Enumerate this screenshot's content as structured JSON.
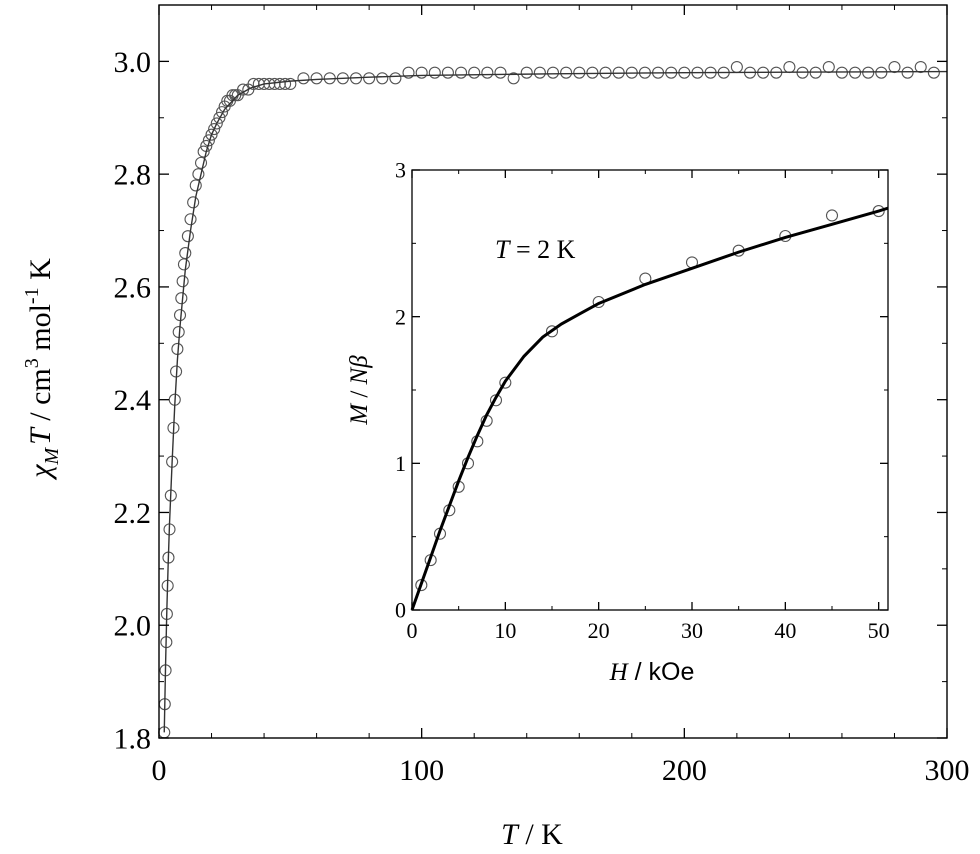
{
  "chart_data": [
    {
      "type": "scatter",
      "panel": "main",
      "xlabel": {
        "main": "T",
        "unit": " / K"
      },
      "ylabel": {
        "chi": "χ",
        "sub": "M",
        "T": "T",
        "mid": " / cm",
        "sup3": "3",
        "mol": " mol",
        "supm1": "-1",
        "K": " K"
      },
      "xlim": [
        0,
        300
      ],
      "ylim": [
        1.8,
        3.1
      ],
      "x_ticks": [
        0,
        100,
        200,
        300
      ],
      "y_ticks": [
        1.8,
        2.0,
        2.2,
        2.4,
        2.6,
        2.8,
        3.0
      ],
      "x_tick_labels": [
        "0",
        "100",
        "200",
        "300"
      ],
      "y_tick_labels": [
        "1.8",
        "2.0",
        "2.2",
        "2.4",
        "2.6",
        "2.8",
        "3.0"
      ],
      "grid": false,
      "series": [
        {
          "kind": "markers",
          "marker": "open-circle",
          "color": "#555555",
          "x": [
            2,
            2.2,
            2.5,
            2.8,
            3,
            3.3,
            3.6,
            4,
            4.5,
            5,
            5.5,
            6,
            6.5,
            7,
            7.5,
            8,
            8.5,
            9,
            9.5,
            10,
            11,
            12,
            13,
            14,
            15,
            16,
            17,
            18,
            19,
            20,
            21,
            22,
            23,
            24,
            25,
            26,
            27,
            28,
            29,
            30,
            32,
            34,
            36,
            38,
            40,
            42,
            44,
            46,
            48,
            50,
            55,
            60,
            65,
            70,
            75,
            80,
            85,
            90,
            95,
            100,
            105,
            110,
            115,
            120,
            125,
            130,
            135,
            140,
            145,
            150,
            155,
            160,
            165,
            170,
            175,
            180,
            185,
            190,
            195,
            200,
            205,
            210,
            215,
            220,
            225,
            230,
            235,
            240,
            245,
            250,
            255,
            260,
            265,
            270,
            275,
            280,
            285,
            290,
            295
          ],
          "y": [
            1.81,
            1.86,
            1.92,
            1.97,
            2.02,
            2.07,
            2.12,
            2.17,
            2.23,
            2.29,
            2.35,
            2.4,
            2.45,
            2.49,
            2.52,
            2.55,
            2.58,
            2.61,
            2.64,
            2.66,
            2.69,
            2.72,
            2.75,
            2.78,
            2.8,
            2.82,
            2.84,
            2.85,
            2.86,
            2.87,
            2.88,
            2.89,
            2.9,
            2.91,
            2.92,
            2.93,
            2.93,
            2.94,
            2.94,
            2.94,
            2.95,
            2.95,
            2.96,
            2.96,
            2.96,
            2.96,
            2.96,
            2.96,
            2.96,
            2.96,
            2.97,
            2.97,
            2.97,
            2.97,
            2.97,
            2.97,
            2.97,
            2.97,
            2.98,
            2.98,
            2.98,
            2.98,
            2.98,
            2.98,
            2.98,
            2.98,
            2.97,
            2.98,
            2.98,
            2.98,
            2.98,
            2.98,
            2.98,
            2.98,
            2.98,
            2.98,
            2.98,
            2.98,
            2.98,
            2.98,
            2.98,
            2.98,
            2.98,
            2.99,
            2.98,
            2.98,
            2.98,
            2.99,
            2.98,
            2.98,
            2.99,
            2.98,
            2.98,
            2.98,
            2.98,
            2.99,
            2.98,
            2.99,
            2.98
          ]
        },
        {
          "kind": "line",
          "color": "#333333",
          "x": [
            2,
            2.5,
            3,
            3.5,
            4,
            5,
            6,
            7,
            8,
            9,
            10,
            12,
            14,
            16,
            18,
            20,
            22,
            25,
            28,
            30,
            35,
            40,
            50,
            60,
            80,
            100,
            150,
            200,
            250,
            300
          ],
          "y": [
            1.81,
            1.93,
            2.03,
            2.11,
            2.18,
            2.29,
            2.39,
            2.47,
            2.53,
            2.58,
            2.63,
            2.7,
            2.76,
            2.8,
            2.84,
            2.87,
            2.89,
            2.915,
            2.93,
            2.94,
            2.953,
            2.96,
            2.965,
            2.968,
            2.972,
            2.975,
            2.978,
            2.98,
            2.981,
            2.982
          ]
        }
      ]
    },
    {
      "type": "scatter",
      "panel": "inset",
      "annotation": {
        "T": "T",
        "rest": " = 2 K"
      },
      "xlabel": {
        "H": "H",
        "unit": " / kOe"
      },
      "ylabel": {
        "M": "M",
        "slash": " / ",
        "N": "N",
        "beta": "β"
      },
      "xlim": [
        0,
        51
      ],
      "ylim": [
        0,
        3
      ],
      "x_ticks": [
        0,
        10,
        20,
        30,
        40,
        50
      ],
      "y_ticks": [
        0,
        1,
        2,
        3
      ],
      "x_tick_labels": [
        "0",
        "10",
        "20",
        "30",
        "40",
        "50"
      ],
      "y_tick_labels": [
        "0",
        "1",
        "2",
        "3"
      ],
      "grid": false,
      "series": [
        {
          "kind": "markers",
          "marker": "open-circle",
          "color": "#555555",
          "x": [
            1,
            2,
            3,
            4,
            5,
            6,
            7,
            8,
            9,
            10,
            15,
            20,
            25,
            30,
            35,
            40,
            45,
            50
          ],
          "y": [
            0.17,
            0.34,
            0.52,
            0.68,
            0.84,
            1.0,
            1.15,
            1.29,
            1.43,
            1.55,
            1.9,
            2.1,
            2.26,
            2.37,
            2.45,
            2.55,
            2.69,
            2.72
          ]
        },
        {
          "kind": "line",
          "color": "#000000",
          "x": [
            0,
            1,
            2,
            3,
            4,
            5,
            6,
            7,
            8,
            9,
            10,
            12,
            14,
            16,
            18,
            20,
            25,
            30,
            35,
            40,
            45,
            50,
            51
          ],
          "y": [
            0,
            0.18,
            0.36,
            0.54,
            0.71,
            0.88,
            1.04,
            1.19,
            1.33,
            1.45,
            1.56,
            1.73,
            1.86,
            1.95,
            2.02,
            2.09,
            2.22,
            2.33,
            2.44,
            2.54,
            2.63,
            2.72,
            2.74
          ]
        }
      ]
    }
  ]
}
